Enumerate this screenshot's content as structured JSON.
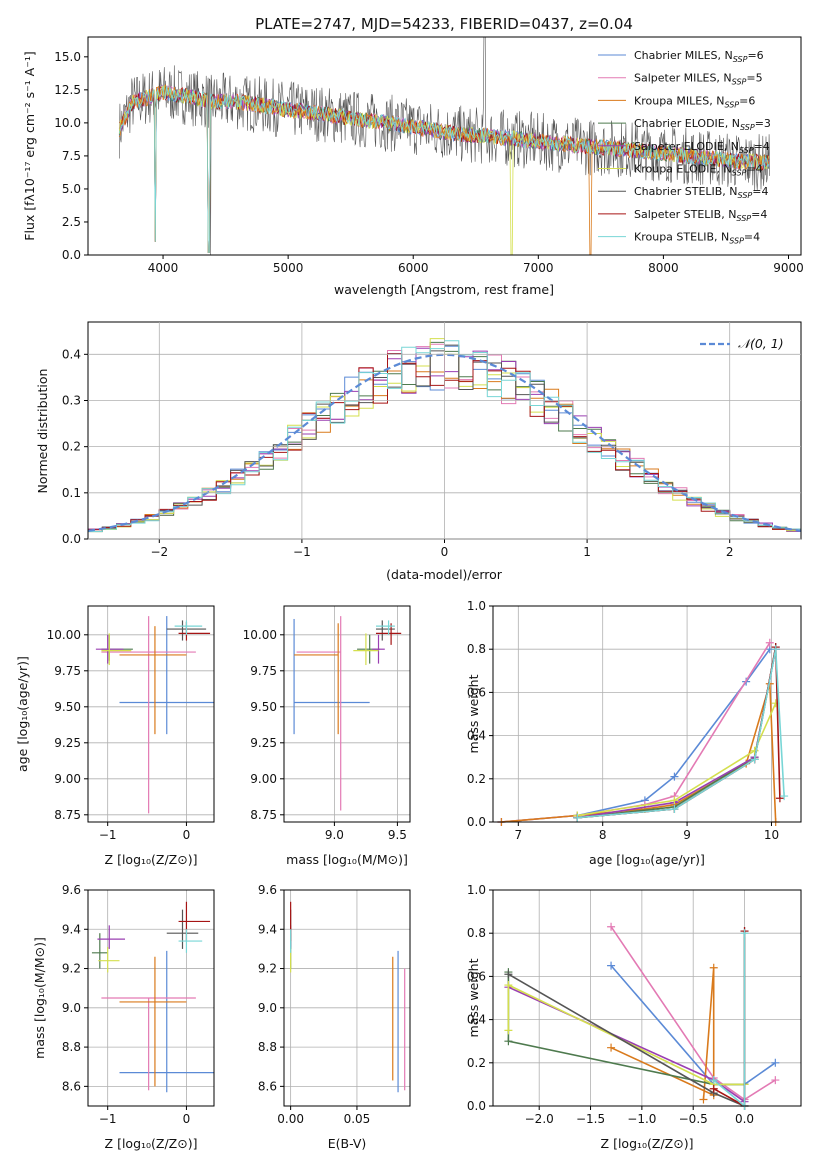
{
  "colors": [
    "#5b8ad6",
    "#e37ab4",
    "#d97a1c",
    "#4e7a4e",
    "#9a3fb2",
    "#d4df4e",
    "#555555",
    "#a61515",
    "#78d6d6"
  ],
  "chart_data": [
    {
      "id": "spectrum",
      "type": "line",
      "title": "PLATE=2747, MJD=54233, FIBERID=0437, z=0.04",
      "xlabel": "wavelength [Angstrom, rest frame]",
      "ylabel": "Flux [fλ10⁻¹⁷ erg cm⁻² s⁻¹ A⁻¹]",
      "xlim": [
        3400,
        9100
      ],
      "ylim": [
        0,
        16.5
      ],
      "xticks": [
        "4000",
        "5000",
        "6000",
        "7000",
        "8000",
        "9000"
      ],
      "yticks": [
        "0.0",
        "2.5",
        "5.0",
        "7.5",
        "10.0",
        "12.5",
        "15.0"
      ],
      "legend_position": "upper-right",
      "legend": [
        {
          "name": "Chabrier MILES, N",
          "sub": "SSP",
          "val": "=6"
        },
        {
          "name": "Salpeter MILES, N",
          "sub": "SSP",
          "val": "=5"
        },
        {
          "name": "Kroupa MILES, N",
          "sub": "SSP",
          "val": "=6"
        },
        {
          "name": "Chabrier ELODIE, N",
          "sub": "SSP",
          "val": "=3"
        },
        {
          "name": "Salpeter ELODIE, N",
          "sub": "SSP",
          "val": "=4"
        },
        {
          "name": "Kroupa ELODIE, N",
          "sub": "SSP",
          "val": "=4"
        },
        {
          "name": "Chabrier STELIB, N",
          "sub": "SSP",
          "val": "=4"
        },
        {
          "name": "Salpeter STELIB, N",
          "sub": "SSP",
          "val": "=4"
        },
        {
          "name": "Kroupa STELIB, N",
          "sub": "SSP",
          "val": "=4"
        }
      ],
      "continuum": [
        [
          3650,
          9.5
        ],
        [
          3750,
          11.5
        ],
        [
          3900,
          12.0
        ],
        [
          4000,
          12.3
        ],
        [
          4200,
          12.0
        ],
        [
          4400,
          11.6
        ],
        [
          4600,
          11.6
        ],
        [
          4800,
          11.3
        ],
        [
          5000,
          11.0
        ],
        [
          5200,
          10.8
        ],
        [
          5400,
          10.5
        ],
        [
          5600,
          10.2
        ],
        [
          5800,
          10.0
        ],
        [
          6000,
          9.7
        ],
        [
          6200,
          9.4
        ],
        [
          6400,
          9.1
        ],
        [
          6600,
          9.0
        ],
        [
          6800,
          8.8
        ],
        [
          7000,
          8.6
        ],
        [
          7200,
          8.4
        ],
        [
          7400,
          8.2
        ],
        [
          7600,
          8.1
        ],
        [
          7800,
          7.9
        ],
        [
          8000,
          7.7
        ],
        [
          8200,
          7.5
        ],
        [
          8400,
          7.3
        ],
        [
          8600,
          7.1
        ],
        [
          8800,
          7.0
        ]
      ]
    },
    {
      "id": "residuals",
      "type": "histogram",
      "xlabel": "(data-model)/error",
      "ylabel": "Normed distribution",
      "xlim": [
        -2.5,
        2.5
      ],
      "ylim": [
        0,
        0.47
      ],
      "xticks": [
        "−2",
        "−1",
        "0",
        "1",
        "2"
      ],
      "yticks": [
        "0.0",
        "0.1",
        "0.2",
        "0.3",
        "0.4"
      ],
      "legend_label": "𝒩(0, 1)",
      "legend_position": "upper-right"
    },
    {
      "id": "age-vs-Z",
      "type": "errorbar",
      "xlabel": "Z [log₁₀(Z/Z⊙)]",
      "ylabel": "age  [log₁₀(age/yr)]",
      "xlim": [
        -1.25,
        0.35
      ],
      "ylim": [
        8.7,
        10.2
      ],
      "xticks": [
        "−1",
        "0"
      ],
      "yticks": [
        "8.75",
        "9.00",
        "9.25",
        "9.50",
        "9.75",
        "10.00"
      ],
      "points": [
        {
          "x": -0.25,
          "y": 9.53,
          "xe": [
            0.6,
            0.6
          ],
          "ye": [
            0.22,
            0.6
          ]
        },
        {
          "x": -0.48,
          "y": 9.88,
          "xe": [
            0.6,
            0.6
          ],
          "ye": [
            1.12,
            0.25
          ]
        },
        {
          "x": -0.4,
          "y": 9.86,
          "xe": [
            0.45,
            0.4
          ],
          "ye": [
            0.55,
            0.2
          ]
        },
        {
          "x": -0.98,
          "y": 9.9,
          "xe": [
            0.1,
            0.3
          ],
          "ye": [
            0.08,
            0.1
          ]
        },
        {
          "x": -1.0,
          "y": 9.9,
          "xe": [
            0.15,
            0.2
          ],
          "ye": [
            0.1,
            0.1
          ]
        },
        {
          "x": -0.98,
          "y": 9.89,
          "xe": [
            0.1,
            0.28
          ],
          "ye": [
            0.1,
            0.12
          ]
        },
        {
          "x": -0.05,
          "y": 10.04,
          "xe": [
            0.2,
            0.3
          ],
          "ye": [
            0.08,
            0.06
          ]
        },
        {
          "x": 0.0,
          "y": 10.01,
          "xe": [
            0.1,
            0.3
          ],
          "ye": [
            0.05,
            0.08
          ]
        },
        {
          "x": 0.0,
          "y": 10.06,
          "xe": [
            0.15,
            0.2
          ],
          "ye": [
            0.06,
            0.04
          ]
        }
      ]
    },
    {
      "id": "age-vs-mass",
      "type": "errorbar",
      "xlabel": "mass [log₁₀(M/M⊙)]",
      "ylabel": "",
      "xlim": [
        8.6,
        9.6
      ],
      "ylim": [
        8.7,
        10.2
      ],
      "xticks": [
        "9.0",
        "9.5"
      ],
      "yticks": [
        "8.75",
        "9.00",
        "9.25",
        "9.50",
        "9.75",
        "10.00"
      ],
      "points": [
        {
          "x": 8.68,
          "y": 9.53,
          "xe": [
            0.0,
            0.6
          ],
          "ye": [
            0.22,
            0.58
          ]
        },
        {
          "x": 9.05,
          "y": 9.88,
          "xe": [
            0.35,
            0.0
          ],
          "ye": [
            1.1,
            0.25
          ]
        },
        {
          "x": 9.03,
          "y": 9.86,
          "xe": [
            0.35,
            0.0
          ],
          "ye": [
            0.55,
            0.22
          ]
        },
        {
          "x": 9.28,
          "y": 9.9,
          "xe": [
            0.1,
            0.08
          ],
          "ye": [
            0.1,
            0.1
          ]
        },
        {
          "x": 9.35,
          "y": 9.9,
          "xe": [
            0.05,
            0.05
          ],
          "ye": [
            0.1,
            0.1
          ]
        },
        {
          "x": 9.25,
          "y": 9.89,
          "xe": [
            0.1,
            0.1
          ],
          "ye": [
            0.1,
            0.12
          ]
        },
        {
          "x": 9.38,
          "y": 10.04,
          "xe": [
            0.05,
            0.1
          ],
          "ye": [
            0.08,
            0.06
          ]
        },
        {
          "x": 9.45,
          "y": 10.01,
          "xe": [
            0.12,
            0.08
          ],
          "ye": [
            0.08,
            0.07
          ]
        },
        {
          "x": 9.43,
          "y": 10.06,
          "xe": [
            0.1,
            0.05
          ],
          "ye": [
            0.06,
            0.04
          ]
        }
      ]
    },
    {
      "id": "weight-vs-age",
      "type": "line",
      "xlabel": "age  [log₁₀(age/yr)]",
      "ylabel": "mass weight",
      "xlim": [
        6.7,
        10.35
      ],
      "ylim": [
        0,
        1.0
      ],
      "xticks": [
        "7",
        "8",
        "9",
        "10"
      ],
      "yticks": [
        "0.0",
        "0.2",
        "0.4",
        "0.6",
        "0.8",
        "1.0"
      ],
      "series": [
        {
          "x": [
            6.8,
            7.7,
            8.5,
            8.85,
            9.7,
            9.98
          ],
          "y": [
            0.0,
            0.03,
            0.1,
            0.21,
            0.65,
            0.8
          ]
        },
        {
          "x": [
            6.8,
            7.7,
            8.5,
            8.85,
            9.98
          ],
          "y": [
            0.0,
            0.03,
            0.08,
            0.12,
            0.83
          ]
        },
        {
          "x": [
            6.8,
            7.7,
            8.5,
            8.85,
            9.7,
            9.98,
            10.05
          ],
          "y": [
            0.0,
            0.03,
            0.06,
            0.08,
            0.27,
            0.64,
            0.0
          ]
        },
        {
          "x": [
            7.7,
            8.85,
            9.8,
            10.05
          ],
          "y": [
            0.02,
            0.07,
            0.3,
            0.8
          ]
        },
        {
          "x": [
            7.7,
            8.85,
            9.8,
            10.05
          ],
          "y": [
            0.02,
            0.09,
            0.3,
            0.8
          ]
        },
        {
          "x": [
            7.7,
            8.85,
            9.8,
            10.05
          ],
          "y": [
            0.03,
            0.1,
            0.33,
            0.55
          ]
        },
        {
          "x": [
            7.7,
            8.85,
            9.8,
            10.05
          ],
          "y": [
            0.02,
            0.06,
            0.29,
            0.81
          ]
        },
        {
          "x": [
            7.7,
            8.85,
            9.8,
            10.05,
            10.1
          ],
          "y": [
            0.02,
            0.06,
            0.29,
            0.81,
            0.11
          ]
        },
        {
          "x": [
            7.7,
            8.85,
            9.8,
            10.05,
            10.15
          ],
          "y": [
            0.02,
            0.06,
            0.29,
            0.8,
            0.12
          ]
        }
      ]
    },
    {
      "id": "mass-vs-Z",
      "type": "errorbar",
      "xlabel": "Z [log₁₀(Z/Z⊙)]",
      "ylabel": "mass [log₁₀(M/M⊙)]",
      "xlim": [
        -1.25,
        0.35
      ],
      "ylim": [
        8.5,
        9.6
      ],
      "xticks": [
        "−1",
        "0"
      ],
      "yticks": [
        "8.6",
        "8.8",
        "9.0",
        "9.2",
        "9.4",
        "9.6"
      ],
      "points": [
        {
          "x": -0.25,
          "y": 8.67,
          "xe": [
            0.6,
            0.6
          ],
          "ye": [
            0.1,
            0.62
          ]
        },
        {
          "x": -0.48,
          "y": 9.05,
          "xe": [
            0.6,
            0.6
          ],
          "ye": [
            0.47,
            0.0
          ]
        },
        {
          "x": -0.4,
          "y": 9.03,
          "xe": [
            0.45,
            0.4
          ],
          "ye": [
            0.43,
            0.23
          ]
        },
        {
          "x": -1.1,
          "y": 9.28,
          "xe": [
            0.1,
            0.1
          ],
          "ye": [
            0.08,
            0.1
          ]
        },
        {
          "x": -0.98,
          "y": 9.35,
          "xe": [
            0.15,
            0.2
          ],
          "ye": [
            0.05,
            0.07
          ]
        },
        {
          "x": -1.0,
          "y": 9.24,
          "xe": [
            0.12,
            0.15
          ],
          "ye": [
            0.06,
            0.07
          ]
        },
        {
          "x": -0.05,
          "y": 9.38,
          "xe": [
            0.2,
            0.2
          ],
          "ye": [
            0.08,
            0.12
          ]
        },
        {
          "x": 0.0,
          "y": 9.44,
          "xe": [
            0.1,
            0.3
          ],
          "ye": [
            0.1,
            0.1
          ]
        },
        {
          "x": 0.0,
          "y": 9.34,
          "xe": [
            0.1,
            0.2
          ],
          "ye": [
            0.06,
            0.06
          ]
        }
      ]
    },
    {
      "id": "mass-vs-EBV",
      "type": "errorbar",
      "xlabel": "E(B-V)",
      "ylabel": "",
      "xlim": [
        -0.005,
        0.09
      ],
      "ylim": [
        8.5,
        9.6
      ],
      "xticks": [
        "0.00",
        "0.05"
      ],
      "yticks": [
        "8.6",
        "8.8",
        "9.0",
        "9.2",
        "9.4",
        "9.6"
      ],
      "points": [
        {
          "x": 0.081,
          "y": 8.67,
          "xe": [
            0,
            0
          ],
          "ye": [
            0.1,
            0.62
          ]
        },
        {
          "x": 0.086,
          "y": 9.05,
          "xe": [
            0,
            0
          ],
          "ye": [
            0.47,
            0.15
          ]
        },
        {
          "x": 0.077,
          "y": 9.03,
          "xe": [
            0,
            0
          ],
          "ye": [
            0.4,
            0.23
          ]
        },
        {
          "x": 0.0,
          "y": 9.28,
          "xe": [
            0,
            0
          ],
          "ye": [
            0.08,
            0.1
          ]
        },
        {
          "x": 0.0,
          "y": 9.35,
          "xe": [
            0,
            0
          ],
          "ye": [
            0.05,
            0.07
          ]
        },
        {
          "x": 0.0,
          "y": 9.24,
          "xe": [
            0,
            0
          ],
          "ye": [
            0.06,
            0.07
          ]
        },
        {
          "x": 0.0,
          "y": 9.38,
          "xe": [
            0,
            0
          ],
          "ye": [
            0.08,
            0.12
          ]
        },
        {
          "x": 0.0,
          "y": 9.44,
          "xe": [
            0,
            0
          ],
          "ye": [
            0.1,
            0.1
          ]
        },
        {
          "x": 0.0,
          "y": 9.34,
          "xe": [
            0,
            0
          ],
          "ye": [
            0.06,
            0.06
          ]
        }
      ]
    },
    {
      "id": "weight-vs-Z",
      "type": "line",
      "xlabel": "Z [log₁₀(Z/Z⊙)]",
      "ylabel": "mass weight",
      "xlim": [
        -2.45,
        0.55
      ],
      "ylim": [
        0,
        1.0
      ],
      "xticks": [
        "−2.0",
        "−1.5",
        "−1.0",
        "−0.5",
        "0.0"
      ],
      "yticks": [
        "0.0",
        "0.2",
        "0.4",
        "0.6",
        "0.8",
        "1.0"
      ],
      "series": [
        {
          "x": [
            -1.3,
            -0.3,
            0.0,
            0.3
          ],
          "y": [
            0.65,
            0.1,
            0.1,
            0.2
          ]
        },
        {
          "x": [
            -1.3,
            -0.3,
            0.0,
            0.3
          ],
          "y": [
            0.83,
            0.13,
            0.03,
            0.12
          ]
        },
        {
          "x": [
            -1.3,
            -0.3,
            -0.3,
            -0.4
          ],
          "y": [
            0.27,
            0.05,
            0.64,
            0.03
          ]
        },
        {
          "x": [
            -2.3,
            -2.3,
            -0.3,
            0.0
          ],
          "y": [
            0.62,
            0.3,
            0.1,
            0.1
          ]
        },
        {
          "x": [
            -2.3,
            -0.3,
            0.0
          ],
          "y": [
            0.55,
            0.12,
            0.02
          ]
        },
        {
          "x": [
            -2.3,
            -2.3,
            -0.3,
            0.0
          ],
          "y": [
            0.35,
            0.56,
            0.1,
            0.1
          ]
        },
        {
          "x": [
            -2.3,
            -0.3,
            0.0,
            0.0
          ],
          "y": [
            0.61,
            0.06,
            0.0,
            0.81
          ]
        },
        {
          "x": [
            -0.3,
            0.0,
            0.0
          ],
          "y": [
            0.08,
            0.0,
            0.81
          ]
        },
        {
          "x": [
            -0.3,
            0.0,
            0.0
          ],
          "y": [
            0.12,
            0.0,
            0.8
          ]
        }
      ]
    }
  ]
}
